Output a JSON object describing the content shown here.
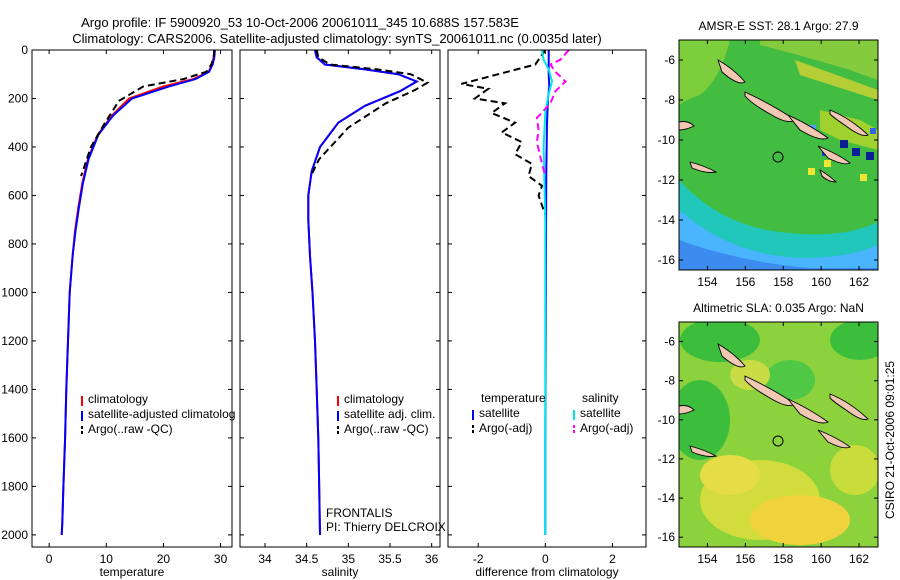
{
  "header": {
    "title_line1": "Argo profile: IF 5900920_53 10-Oct-2006 20061011_345 10.688S 157.583E",
    "title_line2": "Climatology: CARS2006. Satellite-adjusted climatology: synTS_20061011.nc (0.0035d later)"
  },
  "colors": {
    "climatology": "#ff0000",
    "satellite": "#0000ff",
    "argo": "#000000",
    "salinity_satellite": "#00e5ee",
    "salinity_argo": "#ff00ff",
    "map_land": "#f0c8b4"
  },
  "chart_data": [
    {
      "type": "line",
      "xlabel": "temperature",
      "ylabel": "",
      "xlim": [
        -3,
        32
      ],
      "ylim": [
        2050,
        0
      ],
      "xticks": [
        "0",
        "10",
        "20",
        "30"
      ],
      "yticks": [
        "0",
        "200",
        "400",
        "600",
        "800",
        "1000",
        "1200",
        "1400",
        "1600",
        "1800",
        "2000"
      ],
      "legend": [
        "climatology",
        "satellite-adjusted climatolog",
        "Argo(..raw -QC)"
      ],
      "legend_position": "lower-right",
      "series": [
        {
          "name": "climatology",
          "x": [
            28.9,
            28.8,
            28.5,
            27.9,
            25.2,
            20,
            14,
            11,
            8.5,
            6.8,
            5.8,
            5.1,
            4.5,
            4.1,
            3.6,
            3.3,
            3.0,
            2.8,
            2.5,
            2.3,
            2.2
          ],
          "y": [
            0,
            30,
            60,
            90,
            120,
            150,
            200,
            270,
            350,
            450,
            550,
            650,
            750,
            850,
            1000,
            1200,
            1400,
            1600,
            1800,
            1950,
            2000
          ]
        },
        {
          "name": "satellite-adjusted climatolog",
          "x": [
            29.0,
            28.9,
            28.6,
            28.0,
            25.6,
            21,
            14.5,
            11.2,
            8.6,
            6.9,
            5.9,
            5.2,
            4.6,
            4.1,
            3.6,
            3.3,
            3.0,
            2.8,
            2.5,
            2.3,
            2.2
          ],
          "y": [
            0,
            30,
            60,
            90,
            120,
            150,
            200,
            270,
            350,
            450,
            550,
            650,
            750,
            850,
            1000,
            1200,
            1400,
            1600,
            1800,
            1950,
            2000
          ]
        },
        {
          "name": "Argo(..raw -QC)",
          "x": [
            28.9,
            28.8,
            28.4,
            27.5,
            23.5,
            16.5,
            12.2,
            9.8,
            7.3,
            5.6
          ],
          "y": [
            0,
            30,
            60,
            90,
            120,
            150,
            210,
            300,
            400,
            520
          ]
        }
      ]
    },
    {
      "type": "line",
      "xlabel": "salinity",
      "ylabel": "",
      "xlim": [
        33.7,
        36.1
      ],
      "ylim": [
        2050,
        0
      ],
      "xticks": [
        "34",
        "34.5",
        "35",
        "35.5",
        "36"
      ],
      "yticks": [],
      "legend": [
        "climatology",
        "satellite adj. clim.",
        "Argo(..raw -QC)"
      ],
      "legend_position": "lower-right",
      "annotation": [
        "FRONTALIS",
        "PI: Thierry DELCROIX"
      ],
      "series": [
        {
          "name": "climatology",
          "x": [
            34.6,
            34.62,
            34.72,
            35.2,
            35.6,
            35.82,
            35.62,
            35.2,
            34.88,
            34.66,
            34.56,
            34.52,
            34.52,
            34.54,
            34.57,
            34.6,
            34.62,
            34.64,
            34.65,
            34.66
          ],
          "y": [
            0,
            30,
            60,
            80,
            100,
            130,
            170,
            230,
            300,
            400,
            500,
            600,
            700,
            850,
            1000,
            1200,
            1400,
            1600,
            1800,
            2000
          ]
        },
        {
          "name": "satellite adj. clim.",
          "x": [
            34.6,
            34.62,
            34.72,
            35.2,
            35.6,
            35.82,
            35.62,
            35.2,
            34.88,
            34.66,
            34.56,
            34.52,
            34.52,
            34.54,
            34.57,
            34.6,
            34.62,
            34.64,
            34.65,
            34.66
          ],
          "y": [
            0,
            30,
            60,
            80,
            100,
            130,
            170,
            230,
            300,
            400,
            500,
            600,
            700,
            850,
            1000,
            1200,
            1400,
            1600,
            1800,
            2000
          ]
        },
        {
          "name": "Argo(..raw -QC)",
          "x": [
            34.62,
            34.64,
            34.78,
            35.35,
            35.75,
            35.95,
            35.8,
            35.45,
            35.0,
            34.65,
            34.55
          ],
          "y": [
            0,
            30,
            60,
            80,
            100,
            135,
            165,
            220,
            320,
            450,
            520
          ]
        }
      ]
    },
    {
      "type": "line",
      "xlabel": "difference from climatology",
      "ylabel": "",
      "xlim": [
        -2.9,
        3.0
      ],
      "ylim": [
        2050,
        0
      ],
      "xticks": [
        "-2",
        "0",
        "2"
      ],
      "yticks": [],
      "legend": [
        "temperature",
        "satellite",
        "Argo(-adj)",
        "salinity",
        "satellite",
        "Argo(-adj)"
      ],
      "legend_position": "lower-center",
      "series": [
        {
          "name": "satellite",
          "group": "temperature",
          "x": [
            0.1,
            0.1,
            0.12,
            0.08,
            0.05,
            0.03,
            0.02,
            0.01,
            0,
            0
          ],
          "y": [
            0,
            100,
            150,
            200,
            300,
            500,
            800,
            1200,
            1600,
            2000
          ]
        },
        {
          "name": "Argo(-adj)",
          "group": "temperature",
          "x": [
            0,
            -0.3,
            -1.4,
            -2.5,
            -1.7,
            -2.1,
            -1.2,
            -1.6,
            -0.9,
            -1.3,
            -0.7,
            -0.9,
            -0.4,
            -0.5,
            -0.1,
            -0.2,
            0
          ],
          "y": [
            0,
            60,
            100,
            140,
            160,
            200,
            220,
            260,
            300,
            340,
            380,
            430,
            470,
            520,
            560,
            600,
            680
          ]
        },
        {
          "name": "satellite",
          "group": "salinity",
          "x": [
            -0.1,
            -0.05,
            0.1,
            0.2,
            0.1,
            0,
            -0.05,
            0,
            0,
            0
          ],
          "y": [
            0,
            40,
            80,
            130,
            180,
            260,
            400,
            700,
            1200,
            2000
          ]
        },
        {
          "name": "Argo(-adj)",
          "group": "salinity",
          "x": [
            0.7,
            0.45,
            0.15,
            0.3,
            0.6,
            0.3,
            0.15,
            -0.25,
            -0.2,
            -0.25,
            -0.15,
            0
          ],
          "y": [
            0,
            40,
            60,
            90,
            130,
            170,
            220,
            280,
            330,
            380,
            440,
            520
          ]
        }
      ]
    },
    {
      "type": "heatmap",
      "title": "AMSR-E SST: 28.1  Argo: 27.9",
      "xlim": [
        152.5,
        163
      ],
      "ylim": [
        -16.5,
        -5
      ],
      "xticks": [
        "154",
        "156",
        "158",
        "160",
        "162"
      ],
      "yticks": [
        "-6",
        "-8",
        "-10",
        "-12",
        "-14",
        "-16"
      ],
      "marker": {
        "lon": 157.58,
        "lat": -10.69
      }
    },
    {
      "type": "heatmap",
      "title": "Altimetric SLA: 0.035  Argo: NaN",
      "xlim": [
        152.5,
        163
      ],
      "ylim": [
        -16.5,
        -5
      ],
      "xticks": [
        "154",
        "156",
        "158",
        "160",
        "162"
      ],
      "yticks": [
        "-6",
        "-8",
        "-10",
        "-12",
        "-14",
        "-16"
      ],
      "marker": {
        "lon": 157.58,
        "lat": -10.69
      }
    }
  ],
  "footer": {
    "stamp": "CSIRO 21-Oct-2006 09:01:25"
  }
}
